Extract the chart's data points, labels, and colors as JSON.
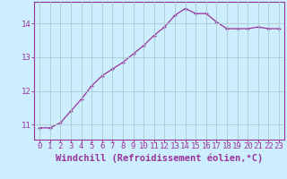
{
  "x": [
    0,
    1,
    2,
    3,
    4,
    5,
    6,
    7,
    8,
    9,
    10,
    11,
    12,
    13,
    14,
    15,
    16,
    17,
    18,
    19,
    20,
    21,
    22,
    23
  ],
  "y": [
    10.9,
    10.9,
    11.05,
    11.4,
    11.75,
    12.15,
    12.45,
    12.65,
    12.85,
    13.1,
    13.35,
    13.65,
    13.9,
    14.25,
    14.45,
    14.3,
    14.3,
    14.05,
    13.85,
    13.85,
    13.85,
    13.9,
    13.85,
    13.85
  ],
  "line_color": "#993399",
  "marker": "+",
  "marker_size": 3.5,
  "marker_linewidth": 0.9,
  "bg_color": "#cceeff",
  "grid_color": "#aacccc",
  "xlabel": "Windchill (Refroidissement éolien,°C)",
  "xlabel_fontsize": 7.5,
  "ylabel_ticks": [
    11,
    12,
    13,
    14
  ],
  "xtick_labels": [
    "0",
    "1",
    "2",
    "3",
    "4",
    "5",
    "6",
    "7",
    "8",
    "9",
    "10",
    "11",
    "12",
    "13",
    "14",
    "15",
    "16",
    "17",
    "18",
    "19",
    "20",
    "21",
    "22",
    "23"
  ],
  "ylim": [
    10.55,
    14.65
  ],
  "xlim": [
    -0.5,
    23.5
  ],
  "tick_fontsize": 6.5,
  "line_width": 0.9
}
